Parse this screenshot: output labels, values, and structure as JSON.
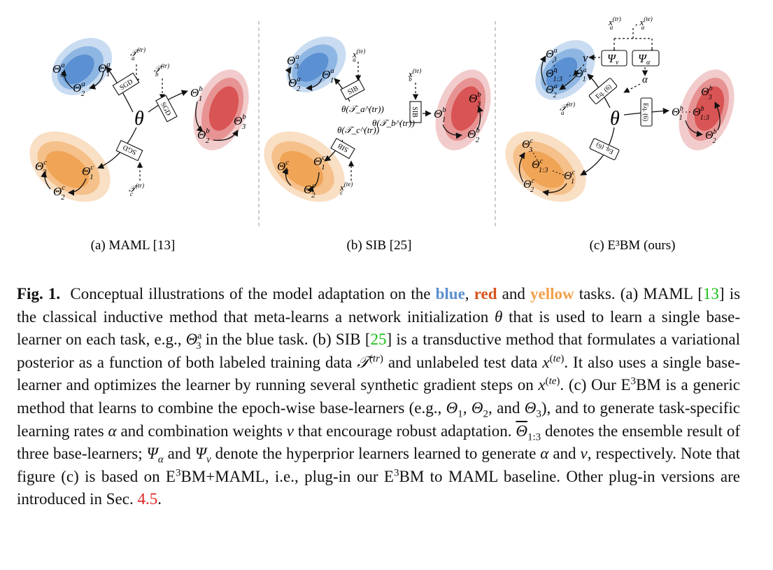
{
  "panels": {
    "a": {
      "caption": "(a) MAML [13]",
      "center": "θ",
      "sgd": "SGD",
      "tasks": [
        "𝒯",
        "𝒯",
        "𝒯"
      ],
      "task_sub": [
        "a",
        "b",
        "c"
      ],
      "task_sup": "(tr)"
    },
    "b": {
      "caption": "(b) SIB [25]",
      "sib": "SIB",
      "theta_labels": [
        "θ(𝒯_a^(tr))",
        "θ(𝒯_b^(tr))",
        "θ(𝒯_c^(tr))"
      ],
      "test": "x",
      "test_sup": "(te)"
    },
    "c": {
      "caption": "(c) E³BM (ours)",
      "eq": "Eq. (6)",
      "psi_v": "Ψ",
      "psi_a": "Ψ",
      "v": "v",
      "alpha": "α",
      "ens": "1:3"
    }
  },
  "node": "Θ",
  "caption": {
    "label": "Fig. 1.",
    "intro": "Conceptual illustrations of the model adaptation on the",
    "blue": "blue",
    "comma": ",",
    "red": "red",
    "and": "and",
    "yellow": "yellow",
    "ref13": "13",
    "ref25": "25",
    "sec": "4.5"
  },
  "colors": {
    "blue": "#5b8fcc",
    "red": "#d9531e",
    "yellow": "#f2a04a",
    "green_ref": "#19c019",
    "red_ref": "#e02424"
  }
}
